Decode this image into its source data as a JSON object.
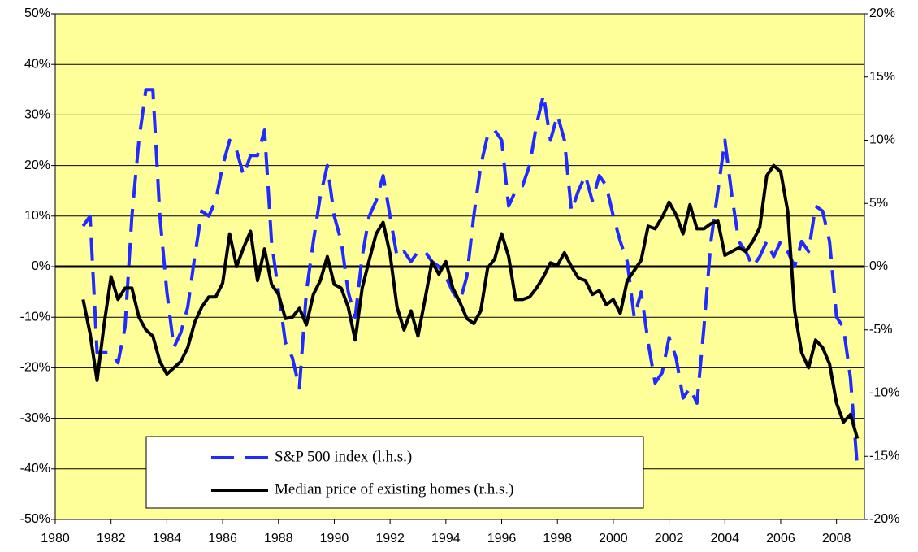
{
  "chart_data": {
    "type": "line",
    "x": [
      1981,
      1981.25,
      1981.5,
      1981.75,
      1982,
      1982.25,
      1982.5,
      1982.75,
      1983,
      1983.25,
      1983.5,
      1983.75,
      1984,
      1984.25,
      1984.5,
      1984.75,
      1985,
      1985.25,
      1985.5,
      1985.75,
      1986,
      1986.25,
      1986.5,
      1986.75,
      1987,
      1987.25,
      1987.5,
      1987.75,
      1988,
      1988.25,
      1988.5,
      1988.75,
      1989,
      1989.25,
      1989.5,
      1989.75,
      1990,
      1990.25,
      1990.5,
      1990.75,
      1991,
      1991.25,
      1991.5,
      1991.75,
      1992,
      1992.25,
      1992.5,
      1992.75,
      1993,
      1993.25,
      1993.5,
      1993.75,
      1994,
      1994.25,
      1994.5,
      1994.75,
      1995,
      1995.25,
      1995.5,
      1995.75,
      1996,
      1996.25,
      1996.5,
      1996.75,
      1997,
      1997.25,
      1997.5,
      1997.75,
      1998,
      1998.25,
      1998.5,
      1998.75,
      1999,
      1999.25,
      1999.5,
      1999.75,
      2000,
      2000.25,
      2000.5,
      2000.75,
      2001,
      2001.25,
      2001.5,
      2001.75,
      2002,
      2002.25,
      2002.5,
      2002.75,
      2003,
      2003.25,
      2003.5,
      2003.75,
      2004,
      2004.25,
      2004.5,
      2004.75,
      2005,
      2005.25,
      2005.5,
      2005.75,
      2006,
      2006.25,
      2006.5,
      2006.75,
      2007,
      2007.25,
      2007.5,
      2007.75,
      2008,
      2008.25,
      2008.5,
      2008.75
    ],
    "series": [
      {
        "name": "S&P 500 index (l.h.s.)",
        "color": "#1f2bff",
        "dashed": true,
        "values": [
          8,
          10,
          -17,
          -17,
          -17,
          -19,
          -12,
          10,
          25,
          35,
          35,
          10,
          -5,
          -16,
          -13,
          -8,
          2,
          11,
          10,
          13,
          20,
          25,
          23,
          18,
          22,
          22,
          27,
          5,
          -5,
          -15,
          -18,
          -24,
          -5,
          5,
          14,
          20,
          10,
          5,
          -5,
          -10,
          2,
          10,
          13,
          18,
          10,
          2,
          3,
          1,
          3,
          3,
          1,
          0,
          -2,
          -5,
          -7,
          -2,
          10,
          20,
          26,
          27,
          25,
          12,
          15,
          16,
          20,
          28,
          34,
          25,
          30,
          25,
          11,
          15,
          18,
          13,
          18,
          16,
          10,
          5,
          1,
          -10,
          -5,
          -15,
          -23,
          -21,
          -14,
          -18,
          -26,
          -24,
          -27,
          -12,
          5,
          15,
          25,
          14,
          5,
          3,
          0,
          2,
          5,
          2,
          5,
          3,
          0,
          5,
          3,
          12,
          11,
          5,
          -10,
          -12,
          -22,
          -40
        ]
      },
      {
        "name": "Median price of existing homes (r.h.s.)",
        "color": "#000000",
        "dashed": false,
        "axis": "y2",
        "values": [
          -2.6,
          -5.3,
          -9.0,
          -4.6,
          -0.8,
          -2.6,
          -1.7,
          -1.7,
          -4.0,
          -5.0,
          -5.5,
          -7.5,
          -8.5,
          -8.0,
          -7.5,
          -6.4,
          -4.4,
          -3.2,
          -2.4,
          -2.4,
          -1.3,
          2.6,
          0,
          1.5,
          2.8,
          -1.1,
          1.4,
          -1.4,
          -2.2,
          -4.1,
          -4.0,
          -3.3,
          -4.6,
          -2.2,
          -1.1,
          0.8,
          -1.4,
          -1.7,
          -3.2,
          -5.8,
          -1.7,
          0.5,
          2.6,
          3.5,
          1.0,
          -3.2,
          -5.0,
          -3.5,
          -5.5,
          -2.6,
          0.4,
          -0.6,
          0.4,
          -1.7,
          -2.8,
          -4.1,
          -4.5,
          -3.5,
          -0.1,
          0.6,
          2.6,
          0.8,
          -2.6,
          -2.6,
          -2.4,
          -1.7,
          -0.8,
          0.3,
          0.1,
          1.1,
          0,
          -0.9,
          -1.1,
          -2.2,
          -1.9,
          -3.0,
          -2.6,
          -3.7,
          -1.1,
          -0.3,
          0.5,
          3.2,
          3.0,
          3.9,
          5.1,
          4.1,
          2.6,
          4.9,
          3.0,
          3.0,
          3.4,
          3.6,
          0.9,
          1.2,
          1.5,
          1.2,
          2.0,
          3.1,
          7.2,
          8.0,
          7.5,
          4.4,
          -3.5,
          -6.8,
          -8.0,
          -5.8,
          -6.4,
          -7.7,
          -10.8,
          -12.3,
          -11.7,
          -13.6
        ]
      }
    ],
    "xlim": [
      1980,
      2009
    ],
    "xticks": [
      1980,
      1982,
      1984,
      1986,
      1988,
      1990,
      1992,
      1994,
      1996,
      1998,
      2000,
      2002,
      2004,
      2006,
      2008
    ],
    "ylim": [
      -50,
      50
    ],
    "yticks": [
      {
        "value": -50,
        "label": "-50%"
      },
      {
        "value": -40,
        "label": "-40%"
      },
      {
        "value": -30,
        "label": "-30%"
      },
      {
        "value": -20,
        "label": "-20%"
      },
      {
        "value": -10,
        "label": "-10%"
      },
      {
        "value": 0,
        "label": "0%"
      },
      {
        "value": 10,
        "label": "10%"
      },
      {
        "value": 20,
        "label": "20%"
      },
      {
        "value": 30,
        "label": "30%"
      },
      {
        "value": 40,
        "label": "40%"
      },
      {
        "value": 50,
        "label": "50%"
      }
    ],
    "y2lim": [
      -20,
      20
    ],
    "y2ticks": [
      {
        "value": -20,
        "label": "-20%"
      },
      {
        "value": -15,
        "label": "-15%"
      },
      {
        "value": -10,
        "label": "-10%"
      },
      {
        "value": -5,
        "label": "-5%"
      },
      {
        "value": 0,
        "label": "0%"
      },
      {
        "value": 5,
        "label": "5%"
      },
      {
        "value": 10,
        "label": "10%"
      },
      {
        "value": 15,
        "label": "15%"
      },
      {
        "value": 20,
        "label": "20%"
      }
    ],
    "grid": true,
    "zero_line": true,
    "background": "#ffff99",
    "legend": "bottom-left"
  }
}
